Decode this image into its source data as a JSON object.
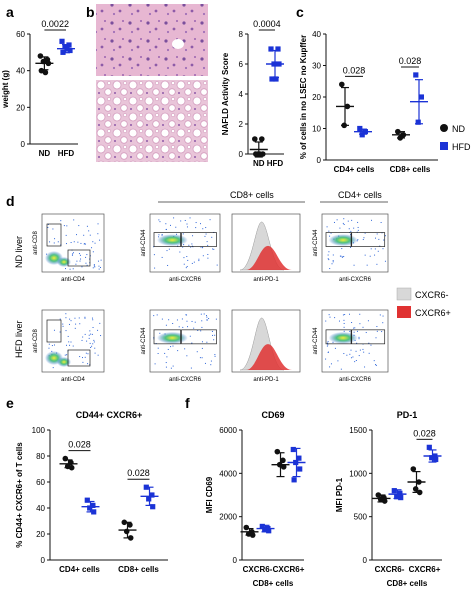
{
  "panel_letters": {
    "a": "a",
    "b": "b",
    "c": "c",
    "d": "d",
    "e": "e",
    "f": "f"
  },
  "colors": {
    "nd": "#111111",
    "hfd": "#1b33d6",
    "cxcr6_neg": "#d8d8d8",
    "cxcr6_pos": "#e03232",
    "dot_plot_hot": "#f2ef3a",
    "dot_plot_mid": "#4cc37f",
    "dot_plot_cool": "#2f66d8"
  },
  "histology": {
    "top_tile": "ND liver H&E",
    "bottom_tile": "HFD liver H&E"
  },
  "flow": {
    "section_headers": {
      "cd8": "CD8+ cells",
      "cd4": "CD4+ cells"
    },
    "row_labels": {
      "nd": "ND liver",
      "hfd": "HFD liver"
    },
    "axis_labels": {
      "cd8": "anti-CD8",
      "cd4": "anti-CD4",
      "cd44": "anti-CD44",
      "cxcr6": "anti-CXCR6",
      "pd1": "anti-PD-1"
    },
    "legend": [
      {
        "label": "CXCR6-",
        "color": "#d8d8d8"
      },
      {
        "label": "CXCR6+",
        "color": "#e03232"
      }
    ]
  },
  "chart_data": [
    {
      "panel": "a",
      "type": "scatter",
      "title": "",
      "xlabel": "",
      "ylabel": "weight (g)",
      "categories": [
        "ND",
        "HFD"
      ],
      "ylim": [
        0,
        60
      ],
      "yticks": [
        0,
        20,
        40,
        60
      ],
      "series": [
        {
          "name": "ND",
          "values": [
            48,
            46,
            45,
            44,
            40,
            39
          ],
          "mean": 44,
          "sd": 3.5
        },
        {
          "name": "HFD",
          "values": [
            56,
            54,
            53,
            51,
            50,
            52
          ],
          "mean": 52,
          "sd": 2.2
        }
      ],
      "annotations": [
        {
          "text": "0.0022",
          "between": [
            "ND",
            "HFD"
          ]
        }
      ]
    },
    {
      "panel": "b",
      "type": "scatter",
      "title": "",
      "xlabel": "",
      "ylabel": "NAFLD Activity Score",
      "categories": [
        "ND",
        "HFD"
      ],
      "ylim": [
        0,
        8
      ],
      "yticks": [
        0,
        2,
        4,
        6,
        8
      ],
      "series": [
        {
          "name": "ND",
          "values": [
            1,
            1,
            0,
            0,
            0,
            0
          ],
          "mean": 0.3,
          "sd": 0.5
        },
        {
          "name": "HFD",
          "values": [
            7,
            7,
            6,
            6,
            5,
            5
          ],
          "mean": 6,
          "sd": 0.9
        }
      ],
      "annotations": [
        {
          "text": "0.0004",
          "between": [
            "ND",
            "HFD"
          ]
        }
      ]
    },
    {
      "panel": "c",
      "type": "scatter",
      "title": "",
      "xlabel": "",
      "ylabel": "% of cells in no LSEC no Kupffer",
      "categories": [
        "CD4+ cells",
        "CD8+ cells"
      ],
      "ylim": [
        0,
        40
      ],
      "yticks": [
        0,
        10,
        20,
        30,
        40
      ],
      "groups": [
        {
          "category": "CD4+ cells",
          "nd": [
            24,
            17,
            11
          ],
          "hfd": [
            10,
            9,
            8
          ],
          "nd_mean": 17,
          "nd_sd": 6,
          "hfd_mean": 9,
          "hfd_sd": 0.8
        },
        {
          "category": "CD8+ cells",
          "nd": [
            9,
            8,
            7
          ],
          "hfd": [
            27,
            20,
            12
          ],
          "nd_mean": 8,
          "nd_sd": 1,
          "hfd_mean": 18.5,
          "hfd_sd": 7
        }
      ],
      "legend": [
        "ND",
        "HFD"
      ],
      "annotations": [
        {
          "text": "0.028",
          "category": "CD4+ cells"
        },
        {
          "text": "0.028",
          "category": "CD8+ cells"
        }
      ]
    },
    {
      "panel": "e",
      "type": "scatter",
      "title": "CD44+ CXCR6+",
      "xlabel": "",
      "ylabel": "% CD44+ CXCR6+ of T cells",
      "categories": [
        "CD4+ cells",
        "CD8+ cells"
      ],
      "ylim": [
        0,
        100
      ],
      "yticks": [
        0,
        20,
        40,
        60,
        80,
        100
      ],
      "groups": [
        {
          "category": "CD4+ cells",
          "nd": [
            78,
            75,
            72,
            71
          ],
          "hfd": [
            46,
            42,
            40,
            37
          ],
          "nd_mean": 74,
          "nd_sd": 3,
          "hfd_mean": 41,
          "hfd_sd": 4
        },
        {
          "category": "CD8+ cells",
          "nd": [
            29,
            27,
            22,
            17
          ],
          "hfd": [
            56,
            50,
            47,
            41
          ],
          "nd_mean": 23,
          "nd_sd": 6,
          "hfd_mean": 49,
          "hfd_sd": 7
        }
      ],
      "annotations": [
        {
          "text": "0.028",
          "category": "CD4+ cells"
        },
        {
          "text": "0.028",
          "category": "CD8+ cells"
        }
      ]
    },
    {
      "panel": "f-left",
      "type": "scatter",
      "title": "CD69",
      "xlabel": "CD8+ cells",
      "ylabel": "MFI CD69",
      "categories": [
        "CXCR6-",
        "CXCR6+"
      ],
      "ylim": [
        0,
        6000
      ],
      "yticks": [
        0,
        2000,
        4000,
        6000
      ],
      "groups": [
        {
          "category": "CXCR6-",
          "nd": [
            1500,
            1300,
            1200,
            1150
          ],
          "hfd": [
            1550,
            1450,
            1400,
            1350
          ],
          "nd_mean": 1300,
          "nd_sd": 150,
          "hfd_mean": 1450,
          "hfd_sd": 150
        },
        {
          "category": "CXCR6+",
          "nd": [
            5000,
            4600,
            4400,
            4300
          ],
          "hfd": [
            5100,
            4700,
            4500,
            4200,
            3700
          ],
          "nd_mean": 4400,
          "nd_sd": 550,
          "hfd_mean": 4500,
          "hfd_sd": 650
        }
      ],
      "annotations": []
    },
    {
      "panel": "f-right",
      "type": "scatter",
      "title": "PD-1",
      "xlabel": "CD8+ cells",
      "ylabel": "MFI PD-1",
      "categories": [
        "CXCR6-",
        "CXCR6+"
      ],
      "ylim": [
        0,
        1500
      ],
      "yticks": [
        0,
        500,
        1000,
        1500
      ],
      "groups": [
        {
          "category": "CXCR6-",
          "nd": [
            750,
            720,
            700,
            680
          ],
          "hfd": [
            800,
            770,
            730,
            720
          ],
          "nd_mean": 710,
          "nd_sd": 40,
          "hfd_mean": 760,
          "hfd_sd": 50
        },
        {
          "category": "CXCR6+",
          "nd": [
            1050,
            900,
            820,
            780
          ],
          "hfd": [
            1300,
            1200,
            1180,
            1160
          ],
          "nd_mean": 900,
          "nd_sd": 120,
          "hfd_mean": 1200,
          "hfd_sd": 70
        }
      ],
      "annotations": [
        {
          "text": "0.028",
          "category": "CXCR6+"
        }
      ]
    }
  ]
}
